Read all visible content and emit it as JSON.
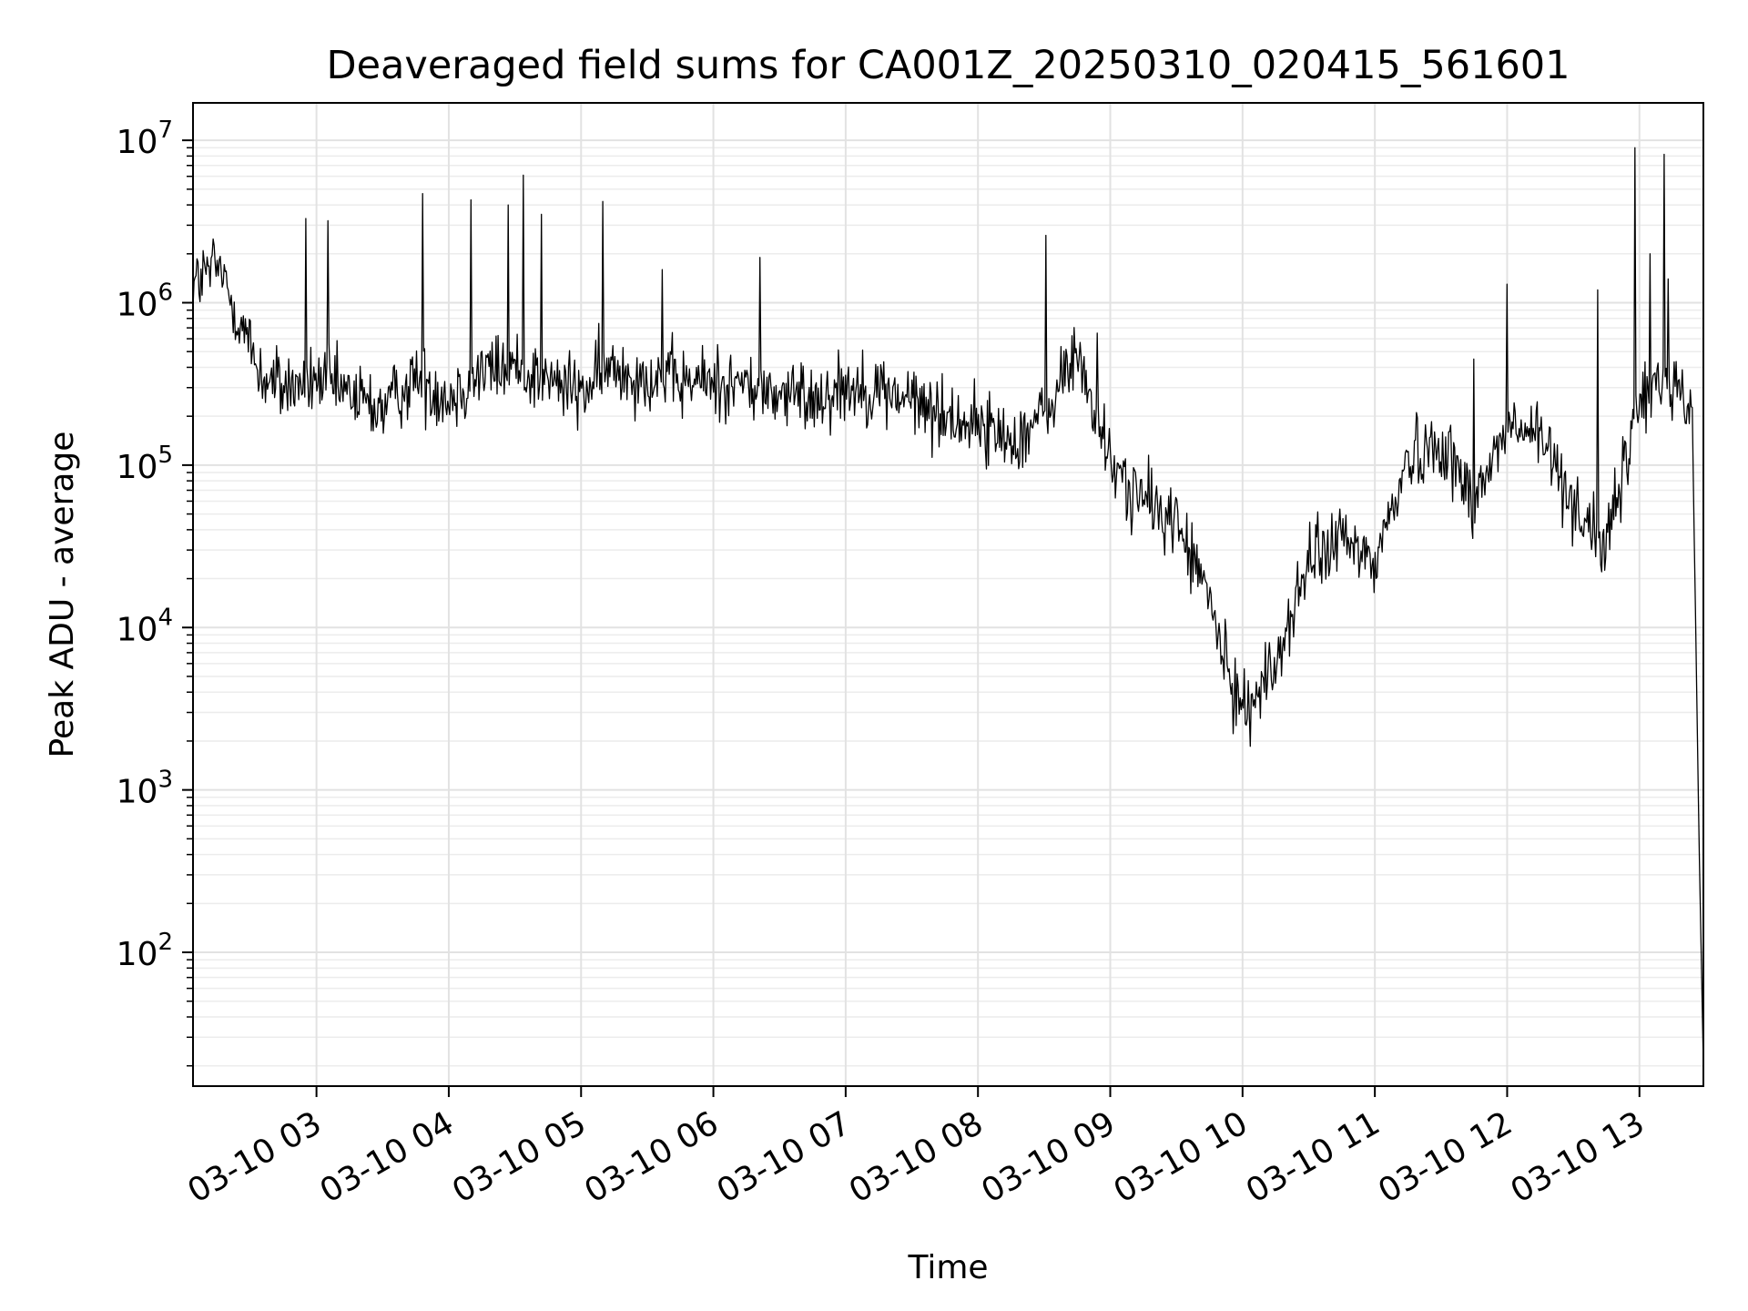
{
  "chart_data": {
    "type": "line",
    "title": "Deaveraged field sums for CA001Z_20250310_020415_561601",
    "xlabel": "Time",
    "ylabel": "Peak ADU - average",
    "y_scale": "log",
    "ylim": [
      15,
      17000000
    ],
    "xlim": [
      "03-10 02:04",
      "03-10 13:29"
    ],
    "grid": "major and minor, light gray",
    "legend": "none",
    "line_color": "#000000",
    "x_ticks": [
      "03-10 03",
      "03-10 04",
      "03-10 05",
      "03-10 06",
      "03-10 07",
      "03-10 08",
      "03-10 09",
      "03-10 10",
      "03-10 11",
      "03-10 12",
      "03-10 13"
    ],
    "y_ticks": [
      {
        "base": "10",
        "exp": "2"
      },
      {
        "base": "10",
        "exp": "3"
      },
      {
        "base": "10",
        "exp": "4"
      },
      {
        "base": "10",
        "exp": "5"
      },
      {
        "base": "10",
        "exp": "6"
      },
      {
        "base": "10",
        "exp": "7"
      }
    ],
    "series": [
      {
        "x": [
          "03-10 02:04",
          "03-10 02:15",
          "03-10 02:25",
          "03-10 02:35",
          "03-10 02:45",
          "03-10 03:00",
          "03-10 03:15",
          "03-10 03:30",
          "03-10 03:45",
          "03-10 04:00",
          "03-10 04:15",
          "03-10 04:30",
          "03-10 04:45",
          "03-10 05:00",
          "03-10 05:15",
          "03-10 05:30",
          "03-10 05:45",
          "03-10 06:00",
          "03-10 06:15",
          "03-10 06:30",
          "03-10 06:45",
          "03-10 07:00",
          "03-10 07:15",
          "03-10 07:30",
          "03-10 07:45",
          "03-10 08:00",
          "03-10 08:15",
          "03-10 08:30",
          "03-10 08:45",
          "03-10 09:00",
          "03-10 09:15",
          "03-10 09:30",
          "03-10 09:45",
          "03-10 09:55",
          "03-10 10:05",
          "03-10 10:15",
          "03-10 10:30",
          "03-10 10:45",
          "03-10 11:00",
          "03-10 11:15",
          "03-10 11:30",
          "03-10 11:45",
          "03-10 12:00",
          "03-10 12:15",
          "03-10 12:30",
          "03-10 12:45",
          "03-10 13:00",
          "03-10 13:15",
          "03-10 13:24",
          "03-10 13:27",
          "03-10 13:29"
        ],
        "y": [
          1300000,
          1700000,
          800000,
          350000,
          300000,
          330000,
          270000,
          220000,
          350000,
          260000,
          380000,
          400000,
          330000,
          280000,
          400000,
          350000,
          320000,
          330000,
          310000,
          270000,
          260000,
          310000,
          290000,
          250000,
          200000,
          180000,
          140000,
          200000,
          500000,
          100000,
          60000,
          45000,
          15000,
          4000,
          3500,
          6000,
          25000,
          35000,
          25000,
          110000,
          140000,
          60000,
          170000,
          150000,
          60000,
          30000,
          250000,
          350000,
          200000,
          500,
          20
        ]
      },
      {
        "x": [
          "03-10 02:55",
          "03-10 03:05",
          "03-10 03:48",
          "03-10 04:10",
          "04:27",
          "03-10 04:34",
          "03-10 04:42",
          "03-10 05:10",
          "03-10 05:37",
          "03-10 06:21",
          "03-10 08:31",
          "03-10 08:54",
          "03-10 11:45",
          "03-10 12:00",
          "03-10 12:41",
          "03-10 12:58",
          "03-10 13:05",
          "03-10 13:11",
          "03-10 13:13"
        ],
        "y": [
          3300000,
          3200000,
          4700000,
          4300000,
          4000000,
          6100000,
          3500000,
          4200000,
          1600000,
          1900000,
          2600000,
          650000,
          450000,
          1300000,
          1200000,
          9000000,
          2000000,
          8200000,
          1400000
        ]
      }
    ]
  }
}
